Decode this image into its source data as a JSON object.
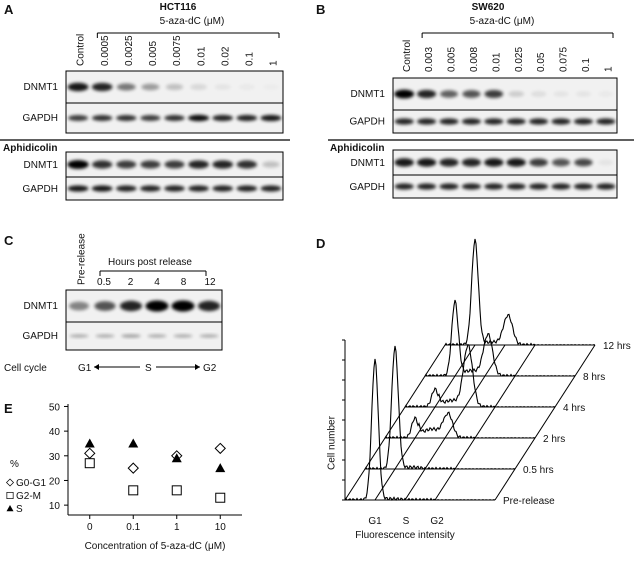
{
  "figure": {
    "A": {
      "label": "A",
      "title": "HCT116",
      "treatment": "5-aza-dC (μM)",
      "lanes": [
        "Control",
        "0.0005",
        "0.0025",
        "0.005",
        "0.0075",
        "0.01",
        "0.02",
        "0.1",
        "1"
      ],
      "rows": [
        "DNMT1",
        "GAPDH"
      ],
      "condition": "Aphidicolin",
      "condition_rows": [
        "DNMT1",
        "GAPDH"
      ]
    },
    "B": {
      "label": "B",
      "title": "SW620",
      "treatment": "5-aza-dC (μM)",
      "lanes": [
        "Control",
        "0.003",
        "0.005",
        "0.008",
        "0.01",
        "0.025",
        "0.05",
        "0.075",
        "0.1",
        "1"
      ],
      "rows": [
        "DNMT1",
        "GAPDH"
      ],
      "condition": "Aphidicolin",
      "condition_rows": [
        "DNMT1",
        "GAPDH"
      ]
    },
    "C": {
      "label": "C",
      "first_lane": "Pre-release",
      "header": "Hours post release",
      "lanes": [
        "0.5",
        "2",
        "4",
        "8",
        "12"
      ],
      "rows": [
        "DNMT1",
        "GAPDH"
      ],
      "cycle_label": "Cell cycle",
      "phases": [
        "G1",
        "S",
        "G2"
      ]
    },
    "D": {
      "label": "D",
      "y_label": "Cell number",
      "x_label": "Fluorescence intensity",
      "x_markers": [
        "G1",
        "S",
        "G2"
      ],
      "slices": [
        "Pre-release",
        "0.5 hrs",
        "2 hrs",
        "4 hrs",
        "8 hrs",
        "12 hrs"
      ]
    }
  },
  "chart_data": {
    "type": "scatter",
    "label": "E",
    "x_label": "Concentration of 5-aza-dC (μM)",
    "y_label": "%",
    "categories": [
      "0",
      "0.1",
      "1",
      "10"
    ],
    "series": [
      {
        "name": "G0-G1",
        "marker": "diamond",
        "color": "#000000",
        "values": [
          31,
          25,
          30,
          33
        ]
      },
      {
        "name": "G2-M",
        "marker": "square",
        "color": "#000000",
        "values": [
          27,
          16,
          16,
          13
        ]
      },
      {
        "name": "S",
        "marker": "triangle",
        "color": "#000000",
        "values": [
          35,
          35,
          29,
          25
        ]
      }
    ],
    "ylim": [
      6,
      51
    ],
    "yticks": [
      10,
      20,
      30,
      40,
      50
    ]
  }
}
